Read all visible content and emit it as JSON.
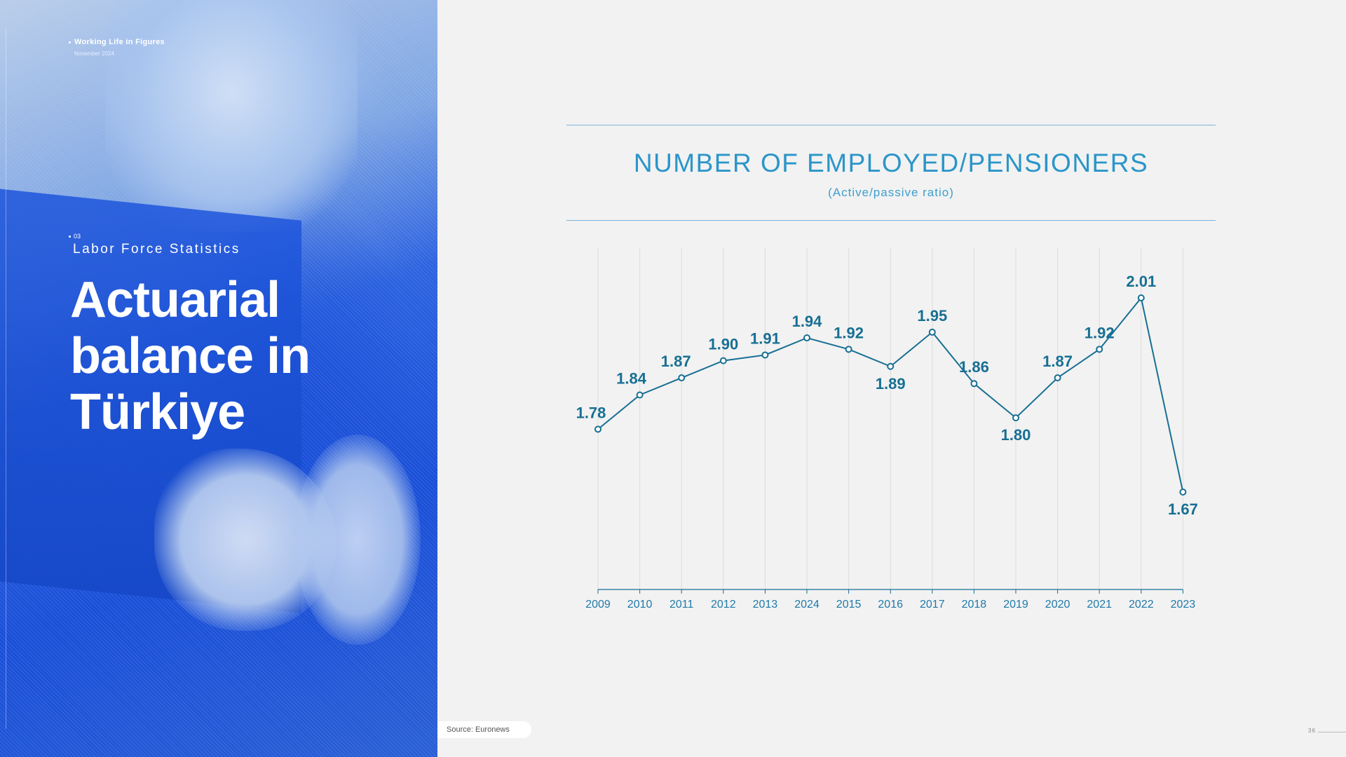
{
  "header": {
    "kicker": "Working Life in Figures",
    "date": "November 2024"
  },
  "section": {
    "number": "03",
    "title": "Labor Force Statistics"
  },
  "main_title_lines": [
    "Actuarial",
    "balance in",
    "Türkiye"
  ],
  "source": "Source: Euronews",
  "page_number": "36",
  "colors": {
    "panel_blue": "#1a4fd8",
    "line": "#176f93",
    "title": "#2b95c9"
  },
  "chart_data": {
    "type": "line",
    "title": "NUMBER OF EMPLOYED/PENSIONERS",
    "subtitle": "(Active/passive ratio)",
    "categories": [
      "2009",
      "2010",
      "2011",
      "2012",
      "2013",
      "2024",
      "2015",
      "2016",
      "2017",
      "2018",
      "2019",
      "2020",
      "2021",
      "2022",
      "2023"
    ],
    "series": [
      {
        "values": [
          1.78,
          1.84,
          1.87,
          1.9,
          1.91,
          1.94,
          1.92,
          1.89,
          1.95,
          1.86,
          1.8,
          1.87,
          1.92,
          2.01,
          1.67
        ],
        "labels": [
          "1.78",
          "1.84",
          "1.87",
          "1.90",
          "1.91",
          "1.94",
          "1.92",
          "1.89",
          "1.95",
          "1.86",
          "1.80",
          "1.87",
          "1.92",
          "2.01",
          "1.67"
        ]
      }
    ],
    "xlabel": "",
    "ylabel": "",
    "ylim": [
      1.5,
      2.1
    ],
    "grid": "vertical",
    "legend": "none"
  }
}
